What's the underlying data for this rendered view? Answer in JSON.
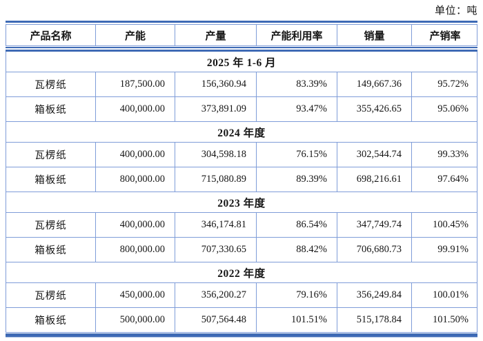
{
  "page": {
    "unit_label": "单位：吨"
  },
  "colors": {
    "accent_blue": "#3e6ab5",
    "grid_blue": "#7e9cd8",
    "underline_blue": "#aabfe3"
  },
  "table": {
    "columns": [
      "产品名称",
      "产能",
      "产量",
      "产能利用率",
      "销量",
      "产销率"
    ],
    "sections": [
      {
        "title": "2025 年 1-6 月",
        "rows": [
          {
            "cells": [
              "瓦楞纸",
              "187,500.00",
              "156,360.94",
              "83.39%",
              "149,667.36",
              "95.72%"
            ]
          },
          {
            "cells": [
              "箱板纸",
              "400,000.00",
              "373,891.09",
              "93.47%",
              "355,426.65",
              "95.06%"
            ]
          }
        ]
      },
      {
        "title": "2024 年度",
        "rows": [
          {
            "cells": [
              "瓦楞纸",
              "400,000.00",
              "304,598.18",
              "76.15%",
              "302,544.74",
              "99.33%"
            ]
          },
          {
            "cells": [
              "箱板纸",
              "800,000.00",
              "715,080.89",
              "89.39%",
              "698,216.61",
              "97.64%"
            ]
          }
        ]
      },
      {
        "title": "2023 年度",
        "rows": [
          {
            "cells": [
              "瓦楞纸",
              "400,000.00",
              "346,174.81",
              "86.54%",
              "347,749.74",
              "100.45%"
            ]
          },
          {
            "cells": [
              "箱板纸",
              "800,000.00",
              "707,330.65",
              "88.42%",
              "706,680.73",
              "99.91%"
            ]
          }
        ]
      },
      {
        "title": "2022 年度",
        "rows": [
          {
            "cells": [
              "瓦楞纸",
              "450,000.00",
              "356,200.27",
              "79.16%",
              "356,249.84",
              "100.01%"
            ]
          },
          {
            "cells": [
              "箱板纸",
              "500,000.00",
              "507,564.48",
              "101.51%",
              "515,178.84",
              "101.50%"
            ]
          }
        ]
      }
    ]
  }
}
